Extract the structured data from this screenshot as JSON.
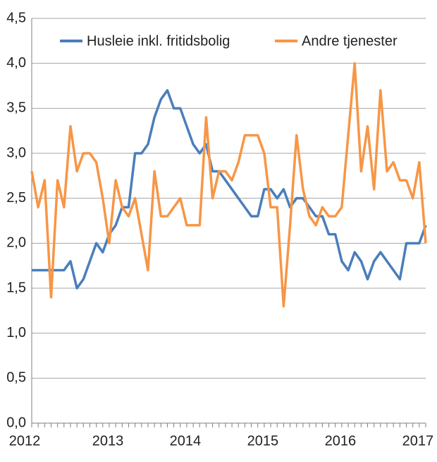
{
  "chart_data": {
    "type": "line",
    "categories": [
      "2012",
      null,
      null,
      null,
      null,
      null,
      null,
      null,
      null,
      null,
      null,
      null,
      "2013",
      null,
      null,
      null,
      null,
      null,
      null,
      null,
      null,
      null,
      null,
      null,
      "2014",
      null,
      null,
      null,
      null,
      null,
      null,
      null,
      null,
      null,
      null,
      null,
      "2015",
      null,
      null,
      null,
      null,
      null,
      null,
      null,
      null,
      null,
      null,
      null,
      "2016",
      null,
      null,
      null,
      null,
      null,
      null,
      null,
      null,
      null,
      null,
      null,
      "2017",
      null
    ],
    "series": [
      {
        "name": "Husleie inkl. fritidsbolig",
        "color": "#4a7ebb",
        "values": [
          1.7,
          1.7,
          1.7,
          1.7,
          1.7,
          1.7,
          1.8,
          1.5,
          1.6,
          1.8,
          2.0,
          1.9,
          2.1,
          2.2,
          2.4,
          2.4,
          3.0,
          3.0,
          3.1,
          3.4,
          3.6,
          3.7,
          3.5,
          3.5,
          3.3,
          3.1,
          3.0,
          3.1,
          2.8,
          2.8,
          2.7,
          2.6,
          2.5,
          2.4,
          2.3,
          2.3,
          2.6,
          2.6,
          2.5,
          2.6,
          2.4,
          2.5,
          2.5,
          2.4,
          2.3,
          2.3,
          2.1,
          2.1,
          1.8,
          1.7,
          1.9,
          1.8,
          1.6,
          1.8,
          1.9,
          1.8,
          1.7,
          1.6,
          2.0,
          2.0,
          2.0,
          2.2
        ]
      },
      {
        "name": "Andre tjenester",
        "color": "#f79646",
        "values": [
          2.8,
          2.4,
          2.7,
          1.4,
          2.7,
          2.4,
          3.3,
          2.8,
          3.0,
          3.0,
          2.9,
          2.5,
          2.0,
          2.7,
          2.4,
          2.3,
          2.5,
          2.1,
          1.7,
          2.8,
          2.3,
          2.3,
          2.4,
          2.5,
          2.2,
          2.2,
          2.2,
          3.4,
          2.5,
          2.8,
          2.8,
          2.7,
          2.9,
          3.2,
          3.2,
          3.2,
          3.0,
          2.4,
          2.4,
          1.3,
          2.2,
          3.2,
          2.6,
          2.3,
          2.2,
          2.4,
          2.3,
          2.3,
          2.4,
          3.2,
          4.0,
          2.8,
          3.3,
          2.6,
          3.7,
          2.8,
          2.9,
          2.7,
          2.7,
          2.5,
          2.9,
          2.0
        ]
      }
    ],
    "ylim": [
      0,
      4.5
    ],
    "yticks": [
      {
        "value": 0,
        "label": "0,0"
      },
      {
        "value": 0.5,
        "label": "0,5"
      },
      {
        "value": 1,
        "label": "1,0"
      },
      {
        "value": 1.5,
        "label": "1,5"
      },
      {
        "value": 2,
        "label": "2,0"
      },
      {
        "value": 2.5,
        "label": "2,5"
      },
      {
        "value": 3,
        "label": "3,0"
      },
      {
        "value": 3.5,
        "label": "3,5"
      },
      {
        "value": 4,
        "label": "4,0"
      },
      {
        "value": 4.5,
        "label": "4,5"
      }
    ],
    "grid": true,
    "legend": "top"
  }
}
